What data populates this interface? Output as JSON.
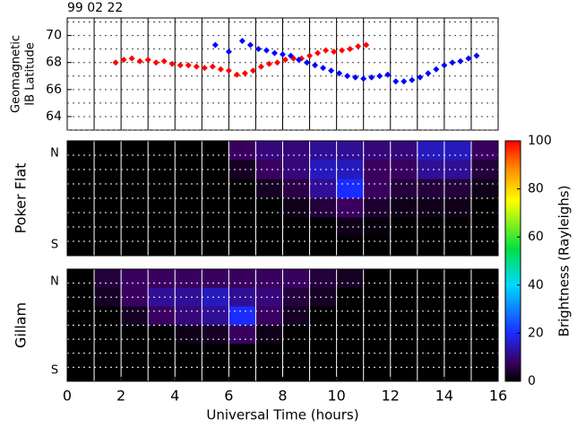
{
  "chart_data": [
    {
      "type": "scatter",
      "title": "99 02 22",
      "ylabel": [
        "Geomagnetic",
        "IB Latitude"
      ],
      "xlim": [
        0,
        16
      ],
      "ylim": [
        63,
        71.3
      ],
      "yticks": [
        64,
        66,
        68,
        70
      ],
      "ygrid": [
        63,
        64,
        65,
        66,
        67,
        68,
        69,
        70,
        71
      ],
      "xgrid": [
        1,
        2,
        3,
        4,
        5,
        6,
        7,
        8,
        9,
        10,
        11,
        12,
        13,
        14,
        15
      ],
      "series": [
        {
          "color": "#ff0000",
          "x": [
            1.8,
            2.1,
            2.4,
            2.7,
            3.0,
            3.3,
            3.6,
            3.9,
            4.2,
            4.5,
            4.8,
            5.1,
            5.4,
            5.7,
            6.0,
            6.3,
            6.6,
            6.9,
            7.2,
            7.5,
            7.8,
            8.1,
            8.4,
            8.7,
            9.0,
            9.3,
            9.6,
            9.9,
            10.2,
            10.5,
            10.8,
            11.1
          ],
          "values": [
            68.0,
            68.2,
            68.3,
            68.1,
            68.2,
            68.0,
            68.1,
            67.9,
            67.8,
            67.8,
            67.7,
            67.6,
            67.7,
            67.5,
            67.4,
            67.1,
            67.2,
            67.4,
            67.7,
            67.9,
            68.0,
            68.2,
            68.3,
            68.3,
            68.5,
            68.7,
            68.9,
            68.8,
            68.9,
            69.0,
            69.2,
            69.3
          ]
        },
        {
          "color": "#0000ff",
          "x": [
            5.5,
            6.0,
            6.5,
            6.8,
            7.1,
            7.4,
            7.7,
            8.0,
            8.3,
            8.6,
            8.9,
            9.2,
            9.5,
            9.8,
            10.1,
            10.4,
            10.7,
            11.0,
            11.3,
            11.6,
            11.9,
            12.2,
            12.5,
            12.8,
            13.1,
            13.4,
            13.7,
            14.0,
            14.3,
            14.6,
            14.9,
            15.2
          ],
          "values": [
            69.3,
            68.8,
            69.6,
            69.3,
            69.0,
            68.9,
            68.7,
            68.6,
            68.5,
            68.2,
            68.0,
            67.8,
            67.6,
            67.4,
            67.2,
            67.0,
            66.9,
            66.8,
            66.9,
            67.0,
            67.1,
            66.6,
            66.6,
            66.7,
            66.9,
            67.2,
            67.5,
            67.8,
            68.0,
            68.1,
            68.3,
            68.5
          ]
        }
      ]
    },
    {
      "type": "heatmap",
      "ylabel": "Poker Flat",
      "y_labels": [
        "N",
        "S"
      ],
      "xlim": [
        0,
        16
      ],
      "xgrid": [
        1,
        2,
        3,
        4,
        5,
        6,
        7,
        8,
        9,
        10,
        11,
        12,
        13,
        14,
        15
      ],
      "xbins": [
        0,
        1,
        2,
        3,
        4,
        5,
        6,
        7,
        8,
        9,
        10,
        11,
        12,
        13,
        14,
        15,
        16
      ],
      "z": [
        [
          0,
          0,
          0,
          0,
          0,
          0,
          8,
          10,
          10,
          12,
          12,
          10,
          10,
          15,
          15,
          8
        ],
        [
          0,
          0,
          0,
          0,
          0,
          0,
          3,
          8,
          10,
          15,
          15,
          8,
          8,
          12,
          12,
          5
        ],
        [
          0,
          0,
          0,
          0,
          0,
          0,
          0,
          3,
          6,
          12,
          20,
          8,
          5,
          5,
          5,
          2
        ],
        [
          0,
          0,
          0,
          0,
          0,
          0,
          0,
          0,
          2,
          5,
          8,
          4,
          2,
          2,
          2,
          0
        ],
        [
          0,
          0,
          0,
          0,
          0,
          0,
          0,
          0,
          0,
          0,
          2,
          1,
          0,
          0,
          0,
          0
        ],
        [
          0,
          0,
          0,
          0,
          0,
          0,
          0,
          0,
          0,
          0,
          0,
          0,
          0,
          0,
          0,
          0
        ]
      ],
      "zlim": [
        0,
        100
      ],
      "zticks": [
        0,
        20,
        40,
        60,
        80,
        100
      ],
      "zlabel": "Brightness (Rayleighs)",
      "colormap": [
        {
          "value": 0,
          "color": "#000000"
        },
        {
          "value": 8,
          "color": "#3a0060"
        },
        {
          "value": 20,
          "color": "#1a2cff"
        },
        {
          "value": 40,
          "color": "#00d8ff"
        },
        {
          "value": 55,
          "color": "#00e040"
        },
        {
          "value": 75,
          "color": "#ffff00"
        },
        {
          "value": 88,
          "color": "#ff9000"
        },
        {
          "value": 100,
          "color": "#ff0000"
        }
      ]
    },
    {
      "type": "heatmap",
      "ylabel": "Gillam",
      "y_labels": [
        "N",
        "S"
      ],
      "xlim": [
        0,
        16
      ],
      "xticks": [
        0,
        2,
        4,
        6,
        8,
        10,
        12,
        14,
        16
      ],
      "xlabel": "Universal Time (hours)",
      "xgrid": [
        1,
        2,
        3,
        4,
        5,
        6,
        7,
        8,
        9,
        10,
        11,
        12,
        13,
        14,
        15
      ],
      "xbins": [
        0,
        1,
        2,
        3,
        4,
        5,
        6,
        7,
        8,
        9,
        10,
        11,
        12,
        13,
        14,
        15,
        16
      ],
      "z": [
        [
          0,
          5,
          8,
          8,
          8,
          8,
          8,
          8,
          8,
          5,
          3,
          0,
          0,
          0,
          0,
          0
        ],
        [
          0,
          3,
          8,
          12,
          12,
          15,
          12,
          10,
          5,
          3,
          0,
          0,
          0,
          0,
          0,
          0
        ],
        [
          0,
          0,
          3,
          8,
          10,
          12,
          20,
          8,
          3,
          0,
          0,
          0,
          0,
          0,
          0,
          0
        ],
        [
          0,
          0,
          0,
          0,
          2,
          3,
          8,
          2,
          0,
          0,
          0,
          0,
          0,
          0,
          0,
          0
        ],
        [
          0,
          0,
          0,
          0,
          0,
          0,
          0,
          0,
          0,
          0,
          0,
          0,
          0,
          0,
          0,
          0
        ],
        [
          0,
          0,
          0,
          0,
          0,
          0,
          0,
          0,
          0,
          0,
          0,
          0,
          0,
          0,
          0,
          0
        ]
      ]
    }
  ]
}
